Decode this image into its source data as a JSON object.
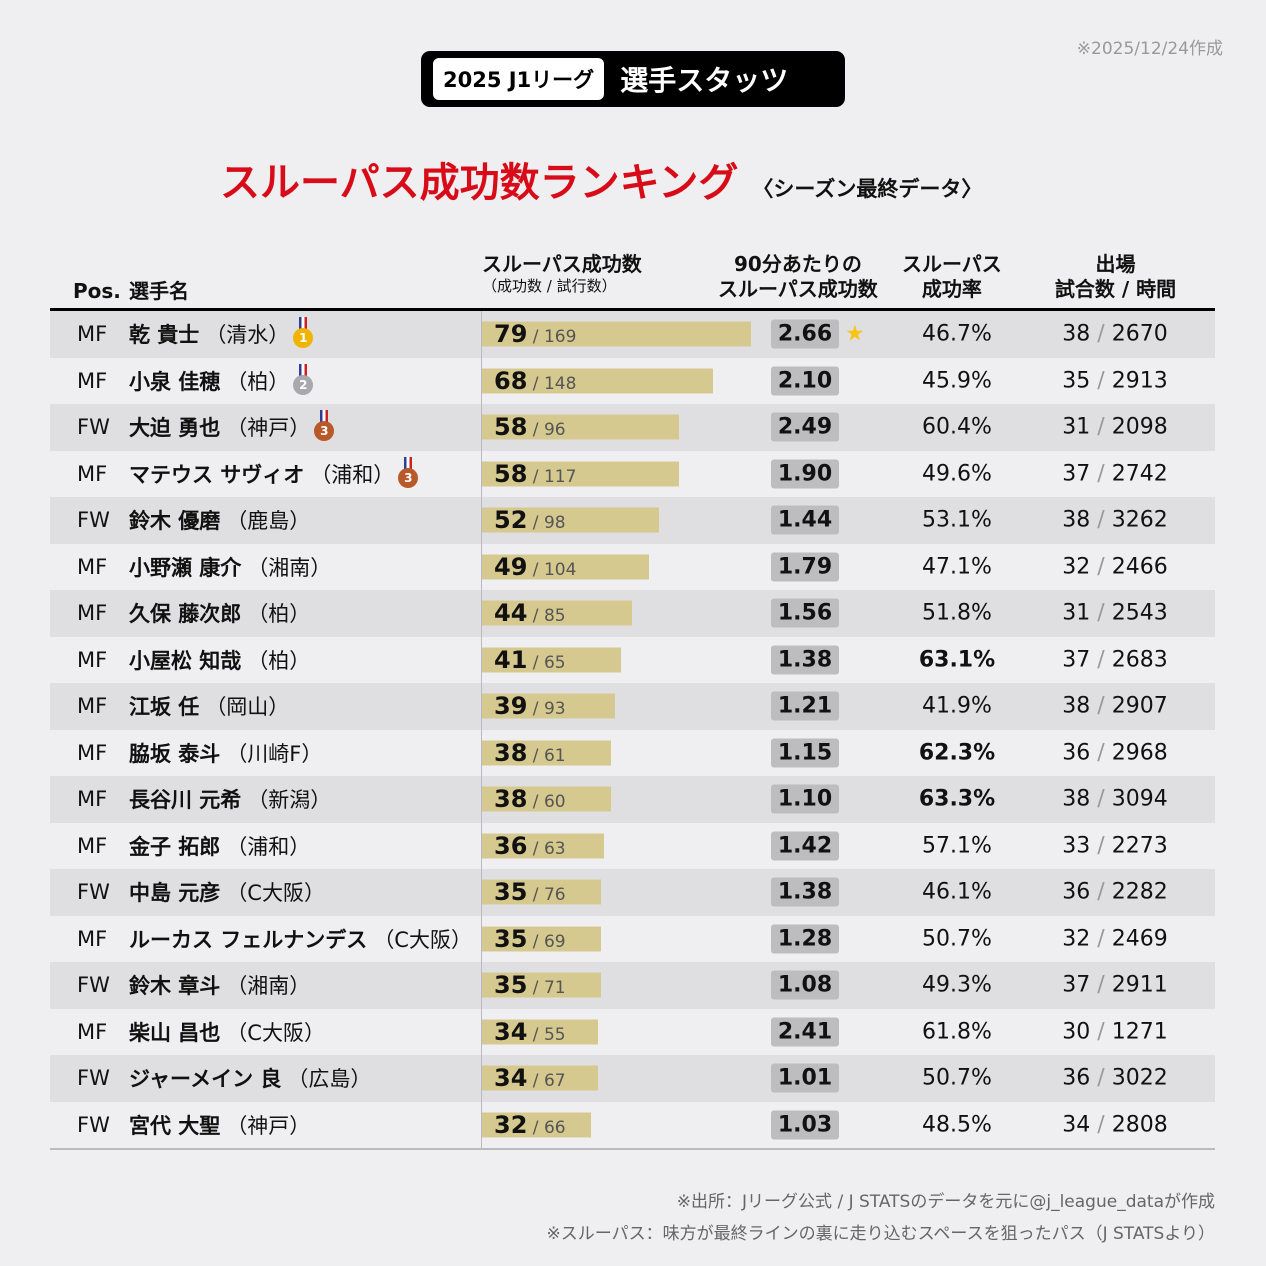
{
  "date_note": "※2025/12/24作成",
  "badge": {
    "league": "2025 J1リーグ",
    "sub": "選手スタッツ"
  },
  "title": {
    "main": "スルーパス成功数ランキング",
    "season": "〈シーズン最終データ〉"
  },
  "colors": {
    "title_red": "#d80c18",
    "bar": "#d6c98f",
    "per90_box": "#bdbdc0",
    "gold": "#f0b400",
    "silver": "#a8a8ad",
    "bronze": "#b8592a"
  },
  "headers": {
    "pos": "Pos.",
    "name": "選手名",
    "success": "スルーパス成功数",
    "success_sub": "（成功数 / 試行数）",
    "per90_1": "90分あたりの",
    "per90_2": "スルーパス成功数",
    "rate_1": "スルーパス",
    "rate_2": "成功率",
    "games_1": "出場",
    "games_2": "試合数 / 時間"
  },
  "chart_data": {
    "type": "table",
    "title": "スルーパス成功数ランキング",
    "bar_max": 80,
    "rows": [
      {
        "pos": "MF",
        "name": "乾 貴士",
        "team": "（清水）",
        "medal": "1",
        "success": 79,
        "attempts": "169",
        "per90": "2.66",
        "star": true,
        "rate": "46.7%",
        "bold": false,
        "games": "38",
        "minutes": "2670"
      },
      {
        "pos": "MF",
        "name": "小泉 佳穂",
        "team": "（柏）",
        "medal": "2",
        "success": 68,
        "attempts": "148",
        "per90": "2.10",
        "rate": "45.9%",
        "games": "35",
        "minutes": "2913"
      },
      {
        "pos": "FW",
        "name": "大迫 勇也",
        "team": "（神戸）",
        "medal": "3",
        "success": 58,
        "attempts": "96",
        "per90": "2.49",
        "rate": "60.4%",
        "games": "31",
        "minutes": "2098"
      },
      {
        "pos": "MF",
        "name": "マテウス サヴィオ",
        "team": "（浦和）",
        "medal": "3",
        "success": 58,
        "attempts": "117",
        "per90": "1.90",
        "rate": "49.6%",
        "games": "37",
        "minutes": "2742"
      },
      {
        "pos": "FW",
        "name": "鈴木 優磨",
        "team": "（鹿島）",
        "success": 52,
        "attempts": "98",
        "per90": "1.44",
        "rate": "53.1%",
        "games": "38",
        "minutes": "3262"
      },
      {
        "pos": "MF",
        "name": "小野瀬 康介",
        "team": "（湘南）",
        "success": 49,
        "attempts": "104",
        "per90": "1.79",
        "rate": "47.1%",
        "games": "32",
        "minutes": "2466"
      },
      {
        "pos": "MF",
        "name": "久保 藤次郎",
        "team": "（柏）",
        "success": 44,
        "attempts": "85",
        "per90": "1.56",
        "rate": "51.8%",
        "games": "31",
        "minutes": "2543"
      },
      {
        "pos": "MF",
        "name": "小屋松 知哉",
        "team": "（柏）",
        "success": 41,
        "attempts": "65",
        "per90": "1.38",
        "rate": "63.1%",
        "bold": true,
        "games": "37",
        "minutes": "2683"
      },
      {
        "pos": "MF",
        "name": "江坂 任",
        "team": "（岡山）",
        "success": 39,
        "attempts": "93",
        "per90": "1.21",
        "rate": "41.9%",
        "games": "38",
        "minutes": "2907"
      },
      {
        "pos": "MF",
        "name": "脇坂 泰斗",
        "team": "（川崎F）",
        "success": 38,
        "attempts": "61",
        "per90": "1.15",
        "rate": "62.3%",
        "bold": true,
        "games": "36",
        "minutes": "2968"
      },
      {
        "pos": "MF",
        "name": "長谷川 元希",
        "team": "（新潟）",
        "success": 38,
        "attempts": "60",
        "per90": "1.10",
        "rate": "63.3%",
        "bold": true,
        "games": "38",
        "minutes": "3094"
      },
      {
        "pos": "MF",
        "name": "金子 拓郎",
        "team": "（浦和）",
        "success": 36,
        "attempts": "63",
        "per90": "1.42",
        "rate": "57.1%",
        "games": "33",
        "minutes": "2273"
      },
      {
        "pos": "FW",
        "name": "中島 元彦",
        "team": "（C大阪）",
        "success": 35,
        "attempts": "76",
        "per90": "1.38",
        "rate": "46.1%",
        "games": "36",
        "minutes": "2282"
      },
      {
        "pos": "MF",
        "name": "ルーカス フェルナンデス",
        "team": "（C大阪）",
        "success": 35,
        "attempts": "69",
        "per90": "1.28",
        "rate": "50.7%",
        "games": "32",
        "minutes": "2469"
      },
      {
        "pos": "FW",
        "name": "鈴木 章斗",
        "team": "（湘南）",
        "success": 35,
        "attempts": "71",
        "per90": "1.08",
        "rate": "49.3%",
        "games": "37",
        "minutes": "2911"
      },
      {
        "pos": "MF",
        "name": "柴山 昌也",
        "team": "（C大阪）",
        "success": 34,
        "attempts": "55",
        "per90": "2.41",
        "rate": "61.8%",
        "games": "30",
        "minutes": "1271"
      },
      {
        "pos": "FW",
        "name": "ジャーメイン 良",
        "team": "（広島）",
        "success": 34,
        "attempts": "67",
        "per90": "1.01",
        "rate": "50.7%",
        "games": "36",
        "minutes": "3022"
      },
      {
        "pos": "FW",
        "name": "宮代 大聖",
        "team": "（神戸）",
        "success": 32,
        "attempts": "66",
        "per90": "1.03",
        "rate": "48.5%",
        "games": "34",
        "minutes": "2808"
      }
    ]
  },
  "notes": [
    "※出所：Jリーグ公式 / J STATSのデータを元に@j_league_dataが作成",
    "※スルーパス：味方が最終ラインの裏に走り込むスペースを狙ったパス（J STATSより）"
  ]
}
